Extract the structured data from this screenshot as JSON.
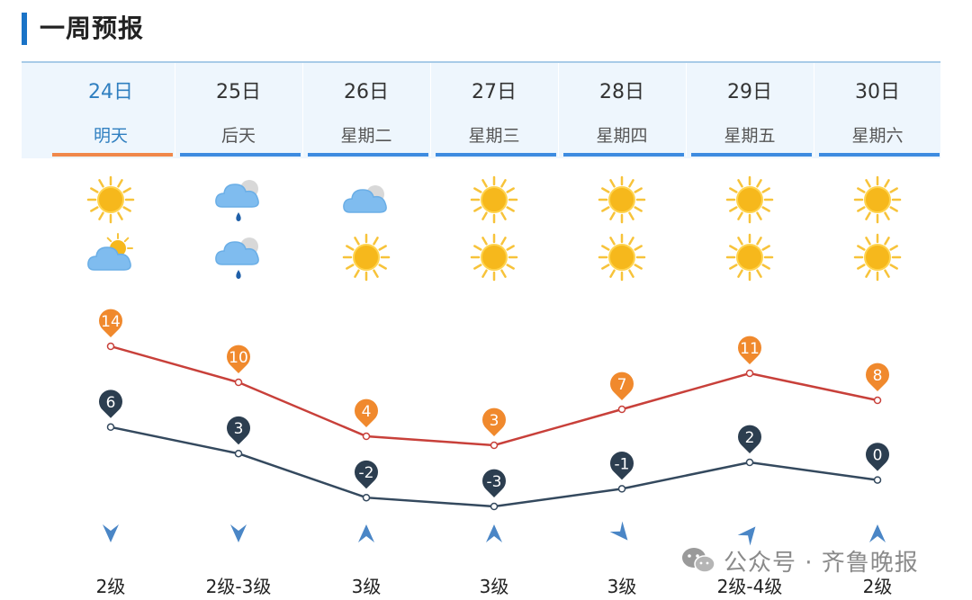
{
  "header": {
    "title": "一周预报"
  },
  "days": [
    {
      "date": "24日",
      "week": "明天",
      "active": true,
      "icon_day": "sun-icon",
      "icon_night": "partly-cloudy-icon",
      "high": 14,
      "low": 6,
      "wind": "2级",
      "wind_dir": "north"
    },
    {
      "date": "25日",
      "week": "后天",
      "active": false,
      "icon_day": "cloud-rain-icon",
      "icon_night": "cloud-rain-icon",
      "high": 10,
      "low": 3,
      "wind": "2级-3级",
      "wind_dir": "north"
    },
    {
      "date": "26日",
      "week": "星期二",
      "active": false,
      "icon_day": "cloud-icon",
      "icon_night": "sun-icon",
      "high": 4,
      "low": -2,
      "wind": "3级",
      "wind_dir": "south"
    },
    {
      "date": "27日",
      "week": "星期三",
      "active": false,
      "icon_day": "sun-icon",
      "icon_night": "sun-icon",
      "high": 3,
      "low": -3,
      "wind": "3级",
      "wind_dir": "south"
    },
    {
      "date": "28日",
      "week": "星期四",
      "active": false,
      "icon_day": "sun-icon",
      "icon_night": "sun-icon",
      "high": 7,
      "low": -1,
      "wind": "3级",
      "wind_dir": "northwest"
    },
    {
      "date": "29日",
      "week": "星期五",
      "active": false,
      "icon_day": "sun-icon",
      "icon_night": "sun-icon",
      "high": 11,
      "low": 2,
      "wind": "2级-4级",
      "wind_dir": "southwest"
    },
    {
      "date": "30日",
      "week": "星期六",
      "active": false,
      "icon_day": "sun-icon",
      "icon_night": "sun-icon",
      "high": 8,
      "low": 0,
      "wind": "2级",
      "wind_dir": "south"
    }
  ],
  "colors": {
    "accent": "#3d8be0",
    "active_tab": "#f0884a",
    "high_line": "#c8403a",
    "high_marker": "#f0892d",
    "low_line": "#34495e",
    "low_marker": "#2c3e50",
    "wind_arrow": "#4a86c6"
  },
  "watermark": {
    "icon": "wechat-icon",
    "text": "公众号 · 齐鲁晚报"
  }
}
